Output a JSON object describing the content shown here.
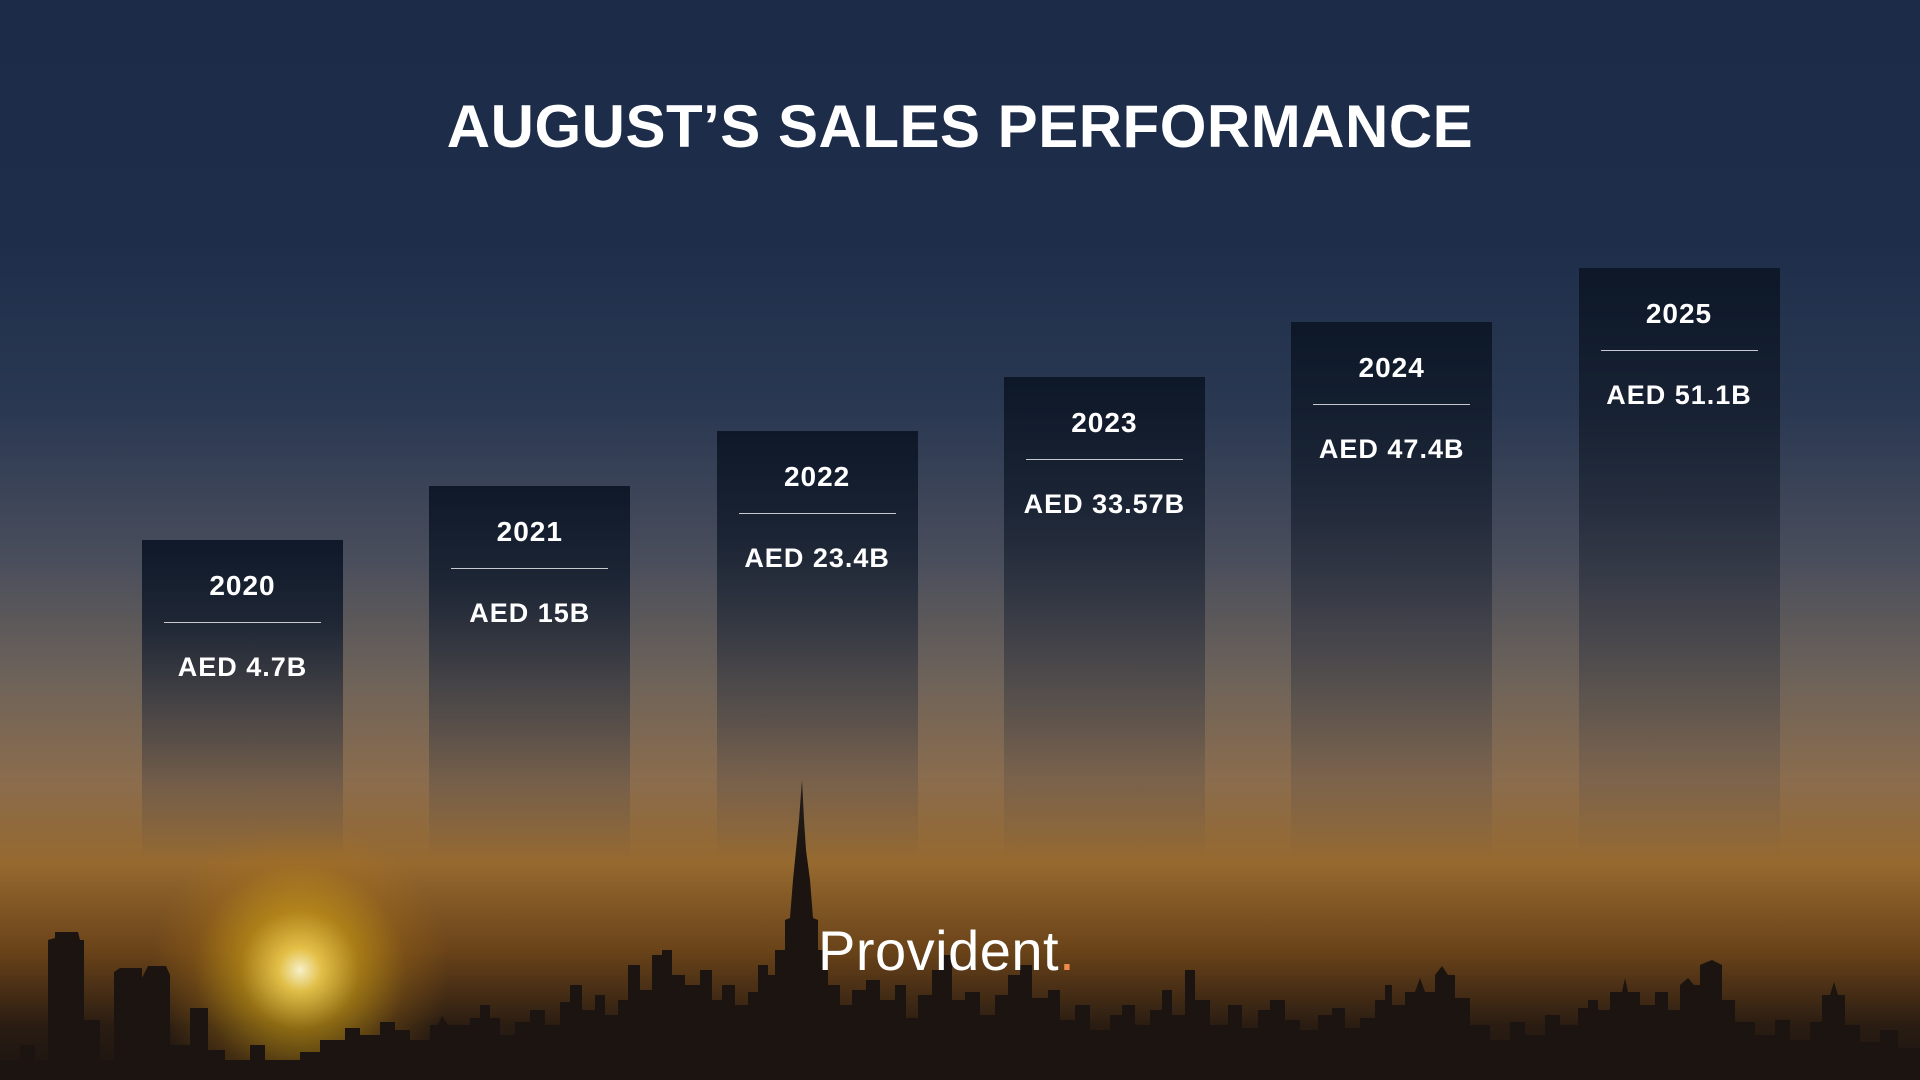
{
  "title": "AUGUST’S SALES PERFORMANCE",
  "brand": {
    "name": "Provident",
    "dot": ".",
    "dot_color": "#f08a4b"
  },
  "colors": {
    "background_top": "#1b2b48",
    "sun": "#f5d04a",
    "text": "#ffffff"
  },
  "chart_data": {
    "type": "bar",
    "title": "AUGUST’S SALES PERFORMANCE",
    "categories": [
      "2020",
      "2021",
      "2022",
      "2023",
      "2024",
      "2025"
    ],
    "values": [
      4.7,
      15,
      23.4,
      33.57,
      47.4,
      51.1
    ],
    "value_labels": [
      "AED 4.7B",
      "AED 15B",
      "AED 23.4B",
      "AED 33.57B",
      "AED 47.4B",
      "AED 51.1B"
    ],
    "unit": "AED billions",
    "xlabel": "",
    "ylabel": "",
    "grid": false,
    "legend": "none"
  }
}
